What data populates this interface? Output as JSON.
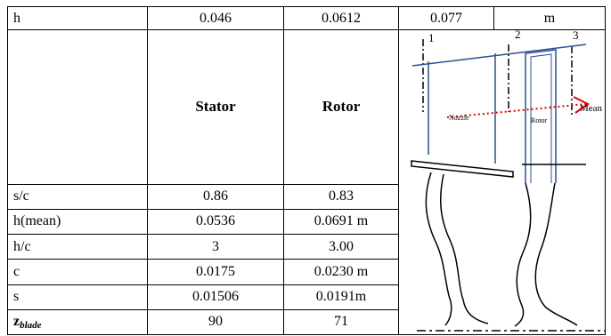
{
  "table": {
    "header_row": {
      "label": "h",
      "stator": "0.046",
      "rotor": "0.0612",
      "col3": "0.077",
      "unit": "m"
    },
    "column_titles": {
      "stator": "Stator",
      "rotor": "Rotor"
    },
    "rows": [
      {
        "label": "s/c",
        "stator": "0.86",
        "rotor": "0.83"
      },
      {
        "label": "h(mean)",
        "stator": "0.0536",
        "rotor": "0.0691 m"
      },
      {
        "label": "h/c",
        "stator": "3",
        "rotor": "3.00"
      },
      {
        "label": "c",
        "stator": "0.0175",
        "rotor": "0.0230 m"
      },
      {
        "label": "s",
        "stator": "0.01506",
        "rotor": "0.0191m"
      },
      {
        "label_main": "z",
        "label_sub": "blade",
        "stator": "90",
        "rotor": "71"
      }
    ]
  },
  "diagram": {
    "station_labels": [
      "1",
      "2",
      "3"
    ],
    "nozzle_label": "Nozzle",
    "rotor_label": "Rotor",
    "mean_line_label": "Mean line",
    "colors": {
      "blade_outline": "#2e4e8f",
      "mean_line": "#e00000",
      "structure": "#000000"
    }
  }
}
